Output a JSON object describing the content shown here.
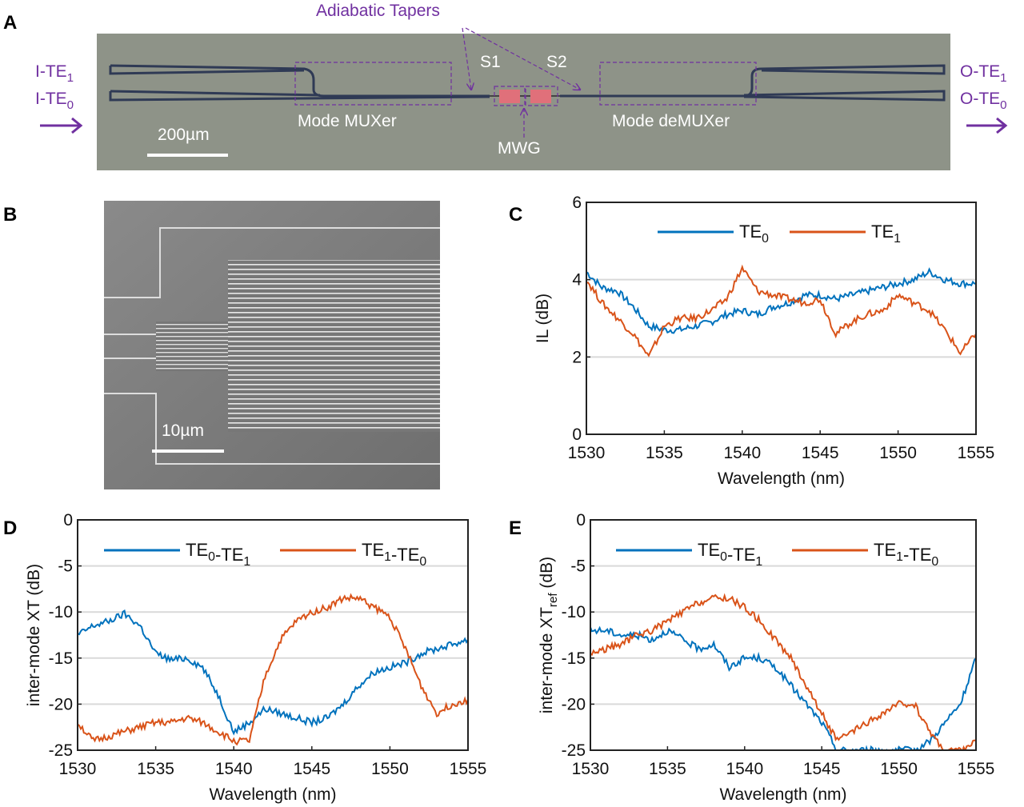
{
  "panels": {
    "A": {
      "letter": "A",
      "labels": {
        "adiabatic_tapers": "Adiabatic Tapers",
        "s1": "S1",
        "s2": "S2",
        "mode_muxer": "Mode MUXer",
        "mode_demuxer": "Mode deMUXer",
        "mwg": "MWG",
        "scale": "200µm",
        "input_te1": "I-TE1",
        "input_te0": "I-TE0",
        "output_te1": "O-TE1",
        "output_te0": "O-TE0"
      },
      "colors": {
        "annotation": "#7030a0",
        "background": "#8e9388",
        "mwg": "#e0707a"
      }
    },
    "B": {
      "letter": "B",
      "scale": "10µm"
    },
    "C": {
      "letter": "C"
    },
    "D": {
      "letter": "D"
    },
    "E": {
      "letter": "E"
    }
  },
  "chart_data": [
    {
      "id": "C",
      "type": "line",
      "xlabel": "Wavelength (nm)",
      "ylabel": {
        "text": "IL (dB)",
        "sub": "",
        "suffix": ""
      },
      "xlim": [
        1530,
        1555
      ],
      "ylim": [
        0,
        6
      ],
      "xticks": [
        1530,
        1535,
        1540,
        1545,
        1550,
        1555
      ],
      "yticks": [
        0,
        2,
        4,
        6
      ],
      "grid": "horizontal",
      "legend": "top",
      "x": [
        1530,
        1531,
        1532,
        1533,
        1534,
        1535,
        1536,
        1537,
        1538,
        1539,
        1540,
        1541,
        1542,
        1543,
        1544,
        1545,
        1546,
        1547,
        1548,
        1549,
        1550,
        1551,
        1552,
        1553,
        1554,
        1555
      ],
      "series": [
        {
          "name": "TE0",
          "color": "#0072bd",
          "values": [
            4.2,
            3.8,
            3.7,
            3.3,
            2.8,
            2.7,
            2.7,
            2.8,
            2.9,
            3.1,
            3.2,
            3.1,
            3.3,
            3.4,
            3.6,
            3.6,
            3.5,
            3.6,
            3.7,
            3.8,
            3.9,
            4.0,
            4.2,
            4.0,
            3.9,
            3.9
          ]
        },
        {
          "name": "TE1",
          "color": "#d95319",
          "values": [
            4.0,
            3.4,
            3.0,
            2.6,
            2.0,
            2.8,
            3.0,
            3.0,
            3.2,
            3.5,
            4.3,
            3.7,
            3.6,
            3.5,
            3.4,
            3.5,
            2.6,
            2.9,
            3.1,
            3.2,
            3.6,
            3.4,
            3.2,
            2.7,
            2.1,
            2.6
          ]
        }
      ]
    },
    {
      "id": "D",
      "type": "line",
      "xlabel": "Wavelength (nm)",
      "ylabel": {
        "text": "inter-mode XT (dB)",
        "sub": "",
        "suffix": ""
      },
      "xlim": [
        1530,
        1555
      ],
      "ylim": [
        -25,
        0
      ],
      "xticks": [
        1530,
        1535,
        1540,
        1545,
        1550,
        1555
      ],
      "yticks": [
        -25,
        -20,
        -15,
        -10,
        -5,
        0
      ],
      "grid": "horizontal",
      "legend": "top",
      "x": [
        1530,
        1531,
        1532,
        1533,
        1534,
        1535,
        1536,
        1537,
        1538,
        1539,
        1540,
        1541,
        1542,
        1543,
        1544,
        1545,
        1546,
        1547,
        1548,
        1549,
        1550,
        1551,
        1552,
        1553,
        1554,
        1555
      ],
      "series": [
        {
          "name": "TE0-TE1",
          "color": "#0072bd",
          "values": [
            -12.5,
            -11.5,
            -11,
            -10.2,
            -11.5,
            -14.5,
            -15.2,
            -15,
            -16,
            -19,
            -23,
            -22,
            -20.5,
            -21,
            -21.5,
            -22,
            -21.5,
            -20,
            -18,
            -16.5,
            -16,
            -15.5,
            -14.5,
            -14,
            -13.5,
            -13
          ]
        },
        {
          "name": "TE1-TE0",
          "color": "#d95319",
          "values": [
            -22,
            -24,
            -23.5,
            -23,
            -22.5,
            -22,
            -22,
            -21.5,
            -22,
            -23,
            -24,
            -24,
            -17,
            -13,
            -11,
            -10,
            -9.5,
            -8.5,
            -8.5,
            -9.5,
            -10.5,
            -14,
            -18,
            -21,
            -20,
            -19.5
          ]
        }
      ]
    },
    {
      "id": "E",
      "type": "line",
      "xlabel": "Wavelength (nm)",
      "ylabel": {
        "text": "inter-mode XT",
        "sub": "ref",
        "suffix": " (dB)"
      },
      "xlim": [
        1530,
        1555
      ],
      "ylim": [
        -25,
        0
      ],
      "xticks": [
        1530,
        1535,
        1540,
        1545,
        1550,
        1555
      ],
      "yticks": [
        -25,
        -20,
        -15,
        -10,
        -5,
        0
      ],
      "grid": "horizontal",
      "legend": "top",
      "x": [
        1530,
        1531,
        1532,
        1533,
        1534,
        1535,
        1536,
        1537,
        1538,
        1539,
        1540,
        1541,
        1542,
        1543,
        1544,
        1545,
        1546,
        1547,
        1548,
        1549,
        1550,
        1551,
        1552,
        1553,
        1554,
        1555
      ],
      "series": [
        {
          "name": "TE0-TE1",
          "color": "#0072bd",
          "values": [
            -12,
            -12,
            -12.5,
            -12.5,
            -13,
            -12,
            -13,
            -14,
            -13.5,
            -16,
            -15,
            -15,
            -16,
            -18,
            -20,
            -22,
            -25,
            -25,
            -25,
            -25,
            -25,
            -25,
            -24,
            -22,
            -20,
            -15
          ]
        },
        {
          "name": "TE1-TE0",
          "color": "#d95319",
          "values": [
            -14.5,
            -14,
            -13.5,
            -12.5,
            -12,
            -11,
            -10,
            -9,
            -8.5,
            -8.5,
            -9.5,
            -11,
            -13,
            -15,
            -18,
            -21,
            -24,
            -23,
            -22,
            -21,
            -20,
            -20,
            -23,
            -25,
            -25,
            -24
          ]
        }
      ]
    }
  ]
}
